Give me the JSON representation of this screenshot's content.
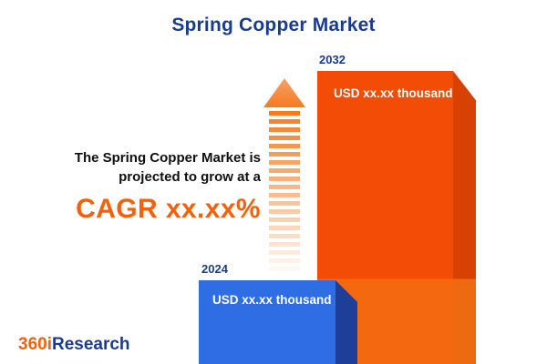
{
  "title": "Spring Copper Market",
  "annotation": {
    "line1": "The Spring Copper Market is",
    "line2": "projected to grow at a",
    "cagr": "CAGR xx.xx%"
  },
  "bars": {
    "b2024": {
      "year": "2024",
      "value": "USD xx.xx thousand"
    },
    "b2032": {
      "year": "2032",
      "value": "USD xx.xx thousand"
    }
  },
  "logo": {
    "text360": "360i",
    "research": "Research"
  },
  "colors": {
    "navy": "#1b3c8c",
    "orange_accent": "#f4610a",
    "bar_orange": "#f24c07",
    "bar_orange_side": "#d84104",
    "bar_blue": "#2e6de4",
    "bar_blue_side": "#1d3f9a"
  },
  "chart_data": {
    "type": "bar",
    "title": "Spring Copper Market",
    "categories": [
      "2024",
      "2032"
    ],
    "value_labels": [
      "USD xx.xx thousand",
      "USD xx.xx thousand"
    ],
    "values_note": "numeric values masked as xx.xx placeholders in source image",
    "relative_heights": [
      0.29,
      1.0
    ],
    "annotation": "The Spring Copper Market is projected to grow at a CAGR xx.xx%",
    "legend": "none",
    "grid": false
  }
}
